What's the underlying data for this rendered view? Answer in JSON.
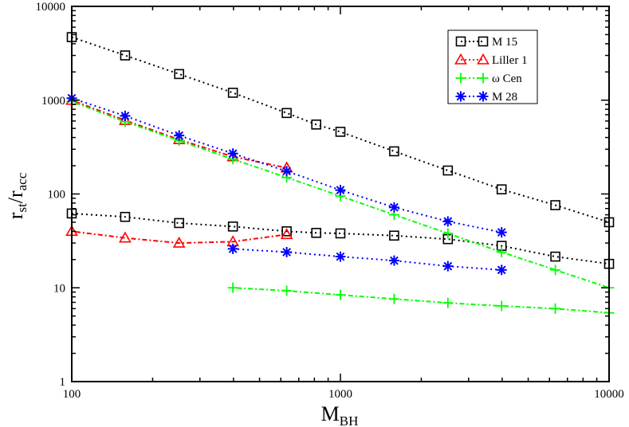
{
  "chart_data": {
    "type": "scatter",
    "xscale": "log",
    "yscale": "log",
    "xlim": [
      100,
      10000
    ],
    "ylim": [
      1,
      10000
    ],
    "xlabel": {
      "main": "M",
      "sub": "BH"
    },
    "ylabel": {
      "main": "r",
      "sub1": "st",
      "sep": "/r",
      "sub2": "acc"
    },
    "x_ticks": [
      {
        "value": 100,
        "label": "100"
      },
      {
        "value": 1000,
        "label": "1000"
      },
      {
        "value": 10000,
        "label": "10000"
      }
    ],
    "y_ticks": [
      {
        "value": 1,
        "label": "1"
      },
      {
        "value": 10,
        "label": "10"
      },
      {
        "value": 100,
        "label": "100"
      },
      {
        "value": 1000,
        "label": "1000"
      },
      {
        "value": 10000,
        "label": "10000"
      }
    ],
    "legend_position": "top-right",
    "series": [
      {
        "name": "M 15",
        "color": "#000000",
        "marker": "square",
        "groups": [
          {
            "x": [
              100,
              158,
              251,
              398,
              631,
              813,
              1000,
              1585,
              2512,
              3981,
              6310,
              10000
            ],
            "y": [
              4700,
              3000,
              1900,
              1200,
              730,
              550,
              460,
              285,
              178,
              112,
              76,
              50
            ]
          },
          {
            "x": [
              100,
              158,
              251,
              398,
              631,
              813,
              1000,
              1585,
              2512,
              3981,
              6310,
              10000
            ],
            "y": [
              62,
              57,
              49,
              45,
              40,
              38.5,
              38,
              36,
              33,
              28,
              21.5,
              18
            ]
          }
        ]
      },
      {
        "name": "Liller 1",
        "color": "#ff0000",
        "marker": "triangle",
        "groups": [
          {
            "x": [
              100,
              158,
              251,
              398,
              631
            ],
            "y": [
              1000,
              610,
              380,
              250,
              190
            ]
          },
          {
            "x": [
              100,
              158,
              251,
              398,
              631
            ],
            "y": [
              40,
              34,
              30,
              31,
              37
            ]
          }
        ]
      },
      {
        "name": "ω Cen",
        "color": "#00ff00",
        "marker": "plus",
        "groups": [
          {
            "x": [
              100,
              158,
              251,
              398,
              631,
              1000,
              1585,
              2512,
              3981,
              6310,
              10000
            ],
            "y": [
              970,
              590,
              370,
              235,
              150,
              95,
              60,
              38,
              24,
              15.5,
              10
            ]
          },
          {
            "x": [
              398,
              631,
              1000,
              1585,
              2512,
              3981,
              6310,
              10000
            ],
            "y": [
              10,
              9.3,
              8.4,
              7.6,
              6.9,
              6.4,
              6,
              5.4
            ]
          }
        ]
      },
      {
        "name": "M 28",
        "color": "#0000ff",
        "marker": "star",
        "groups": [
          {
            "x": [
              100,
              158,
              251,
              398,
              631,
              1000,
              1585,
              2512,
              3981
            ],
            "y": [
              1050,
              680,
              420,
              270,
              175,
              110,
              72,
              51,
              39
            ]
          },
          {
            "x": [
              398,
              631,
              1000,
              1585,
              2512,
              3981
            ],
            "y": [
              26,
              24,
              21.5,
              19.5,
              17,
              15.5
            ]
          }
        ]
      }
    ]
  }
}
